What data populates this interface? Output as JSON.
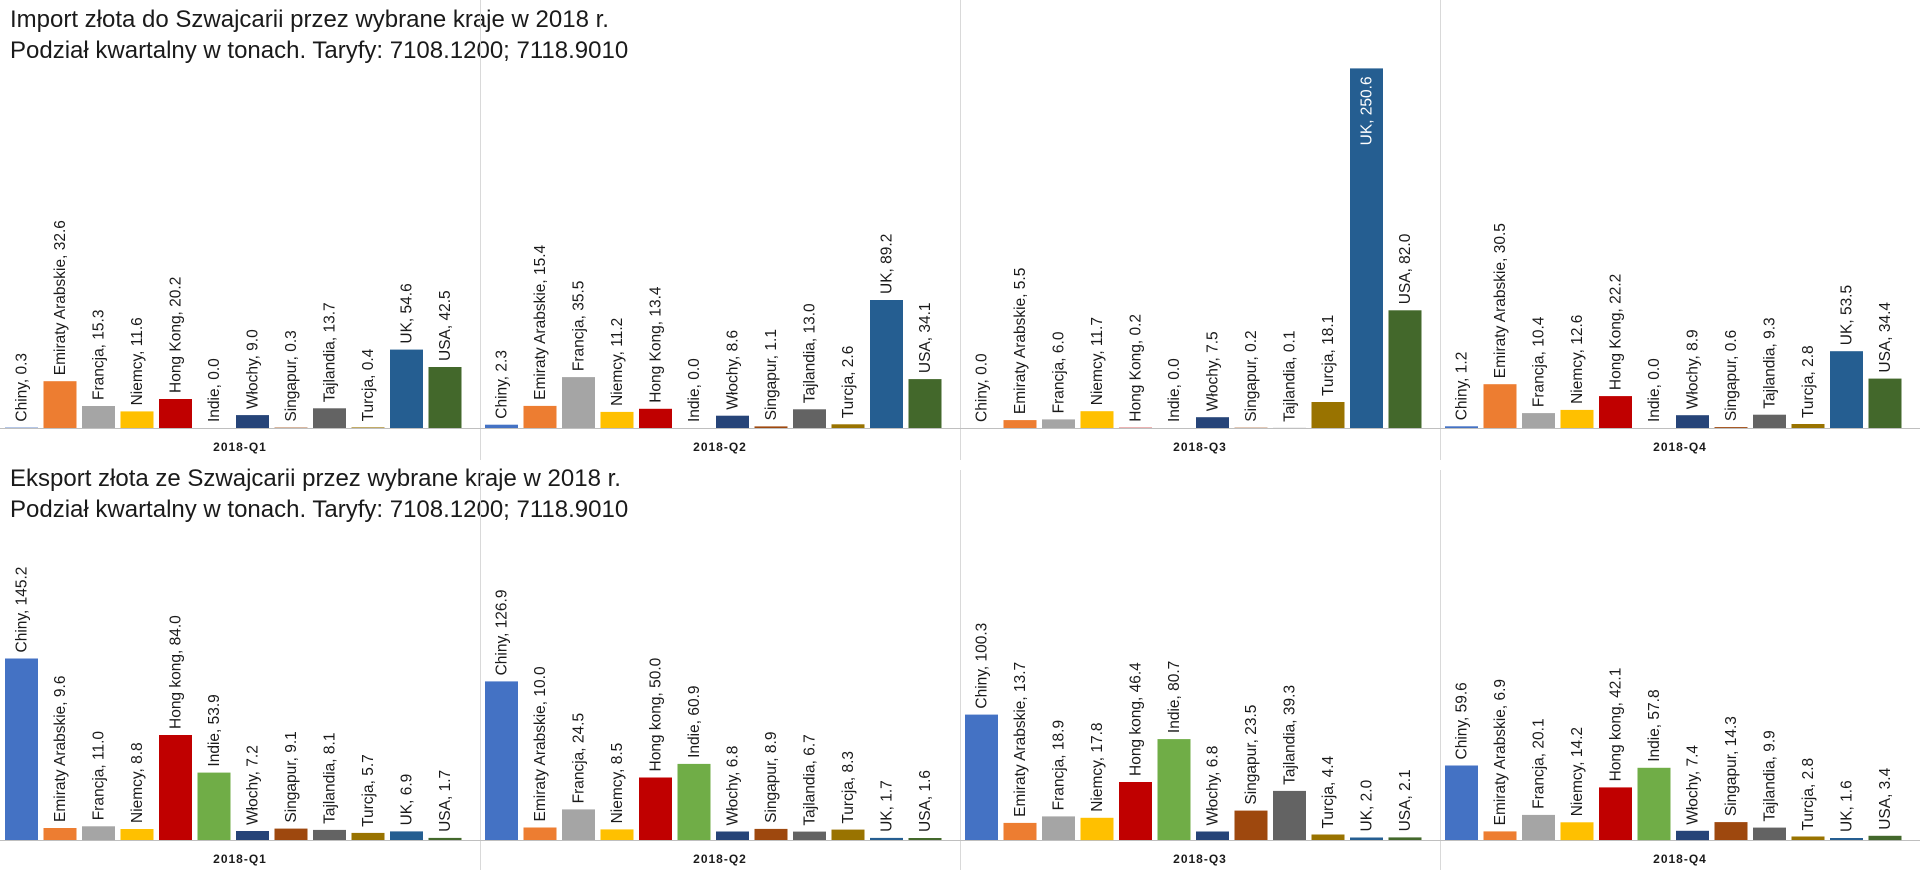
{
  "import_title": {
    "line1": "Import złota do Szwajcarii przez wybrane kraje w 2018 r.",
    "line2": "Podział kwartalny w tonach. Taryfy: 7108.1200; 7118.9010"
  },
  "export_title": {
    "line1": "Eksport złota ze Szwajcarii przez wybrane kraje w 2018 r.",
    "line2": "Podział kwartalny w tonach. Taryfy: 7108.1200; 7118.9010"
  },
  "country_colors": [
    "#4472C4",
    "#ED7D31",
    "#A5A5A5",
    "#FFC000",
    "#C00000",
    "#70AD47",
    "#264478",
    "#9E480E",
    "#636363",
    "#997300",
    "#255E91",
    "#43682B"
  ],
  "chart_data": [
    {
      "type": "bar",
      "title": "Import złota do Szwajcarii przez wybrane kraje w 2018 r.",
      "subtitle": "Podział kwartalny w tonach. Taryfy: 7108.1200; 7118.9010",
      "unit": "tony",
      "categories": [
        "2018-Q1",
        "2018-Q2",
        "2018-Q3",
        "2018-Q4"
      ],
      "groups": [
        {
          "category": "2018-Q1",
          "bars": [
            {
              "country": "Chiny",
              "value": 0.3,
              "label": "Chiny, 0.3",
              "color_index": 0
            },
            {
              "country": "Emiraty Arabskie",
              "value": 32.6,
              "label": "Emiraty Arabskie, 32.6",
              "color_index": 1
            },
            {
              "country": "Francja",
              "value": 15.3,
              "label": "Francja, 15.3",
              "color_index": 2
            },
            {
              "country": "Niemcy",
              "value": 11.6,
              "label": "Niemcy, 11.6",
              "color_index": 3
            },
            {
              "country": "Hong Kong",
              "value": 20.2,
              "label": "Hong Kong, 20.2",
              "color_index": 4
            },
            {
              "country": "Indie",
              "value": 0.0,
              "label": "Indie, 0.0",
              "color_index": 5
            },
            {
              "country": "Włochy",
              "value": 9.0,
              "label": "Włochy, 9.0",
              "color_index": 6
            },
            {
              "country": "Singapur",
              "value": 0.3,
              "label": "Singapur, 0.3",
              "color_index": 7
            },
            {
              "country": "Tajlandia",
              "value": 13.7,
              "label": "Tajlandia, 13.7",
              "color_index": 8
            },
            {
              "country": "Turcja",
              "value": 0.4,
              "label": "Turcja, 0.4",
              "color_index": 9
            },
            {
              "country": "UK",
              "value": 54.6,
              "label": "UK, 54.6",
              "color_index": 10
            },
            {
              "country": "USA",
              "value": 42.5,
              "label": "USA, 42.5",
              "color_index": 11
            }
          ]
        },
        {
          "category": "2018-Q2",
          "bars": [
            {
              "country": "Chiny",
              "value": 2.3,
              "label": "Chiny, 2.3",
              "color_index": 0
            },
            {
              "country": "Emiraty Arabskie",
              "value": 15.4,
              "label": "Emiraty Arabskie, 15.4",
              "color_index": 1
            },
            {
              "country": "Francja",
              "value": 35.5,
              "label": "Francja, 35.5",
              "color_index": 2
            },
            {
              "country": "Niemcy",
              "value": 11.2,
              "label": "Niemcy, 11.2",
              "color_index": 3
            },
            {
              "country": "Hong Kong",
              "value": 13.4,
              "label": "Hong Kong, 13.4",
              "color_index": 4
            },
            {
              "country": "Indie",
              "value": 0.0,
              "label": "Indie, 0.0",
              "color_index": 5
            },
            {
              "country": "Włochy",
              "value": 8.6,
              "label": "Włochy, 8.6",
              "color_index": 6
            },
            {
              "country": "Singapur",
              "value": 1.1,
              "label": "Singapur, 1.1",
              "color_index": 7
            },
            {
              "country": "Tajlandia",
              "value": 13.0,
              "label": "Tajlandia, 13.0",
              "color_index": 8
            },
            {
              "country": "Turcja",
              "value": 2.6,
              "label": "Turcja, 2.6",
              "color_index": 9
            },
            {
              "country": "UK",
              "value": 89.2,
              "label": "UK, 89.2",
              "color_index": 10
            },
            {
              "country": "USA",
              "value": 34.1,
              "label": "USA, 34.1",
              "color_index": 11
            }
          ]
        },
        {
          "category": "2018-Q3",
          "bars": [
            {
              "country": "Chiny",
              "value": 0.0,
              "label": "Chiny, 0.0",
              "color_index": 0
            },
            {
              "country": "Emiraty Arabskie",
              "value": 5.5,
              "label": "Emiraty Arabskie, 5.5",
              "color_index": 1
            },
            {
              "country": "Francja",
              "value": 6.0,
              "label": "Francja, 6.0",
              "color_index": 2
            },
            {
              "country": "Niemcy",
              "value": 11.7,
              "label": "Niemcy, 11.7",
              "color_index": 3
            },
            {
              "country": "Hong Kong",
              "value": 0.2,
              "label": "Hong Kong, 0.2",
              "color_index": 4
            },
            {
              "country": "Indie",
              "value": 0.0,
              "label": "Indie, 0.0",
              "color_index": 5
            },
            {
              "country": "Włochy",
              "value": 7.5,
              "label": "Włochy, 7.5",
              "color_index": 6
            },
            {
              "country": "Singapur",
              "value": 0.2,
              "label": "Singapur, 0.2",
              "color_index": 7
            },
            {
              "country": "Tajlandia",
              "value": 0.1,
              "label": "Tajlandia, 0.1",
              "color_index": 8
            },
            {
              "country": "Turcja",
              "value": 18.1,
              "label": "Turcja, 18.1",
              "color_index": 9
            },
            {
              "country": "UK",
              "value": 250.6,
              "label": "UK, 250.6",
              "color_index": 10,
              "label_inside": true
            },
            {
              "country": "USA",
              "value": 82.0,
              "label": "USA, 82.0",
              "color_index": 11
            }
          ]
        },
        {
          "category": "2018-Q4",
          "bars": [
            {
              "country": "Chiny",
              "value": 1.2,
              "label": "Chiny, 1.2",
              "color_index": 0
            },
            {
              "country": "Emiraty Arabskie",
              "value": 30.5,
              "label": "Emiraty Arabskie, 30.5",
              "color_index": 1
            },
            {
              "country": "Francja",
              "value": 10.4,
              "label": "Francja, 10.4",
              "color_index": 2
            },
            {
              "country": "Niemcy",
              "value": 12.6,
              "label": "Niemcy, 12.6",
              "color_index": 3
            },
            {
              "country": "Hong Kong",
              "value": 22.2,
              "label": "Hong Kong, 22.2",
              "color_index": 4
            },
            {
              "country": "Indie",
              "value": 0.0,
              "label": "Indie, 0.0",
              "color_index": 5
            },
            {
              "country": "Włochy",
              "value": 8.9,
              "label": "Włochy, 8.9",
              "color_index": 6
            },
            {
              "country": "Singapur",
              "value": 0.6,
              "label": "Singapur, 0.6",
              "color_index": 7
            },
            {
              "country": "Tajlandia",
              "value": 9.3,
              "label": "Tajlandia, 9.3",
              "color_index": 8
            },
            {
              "country": "Turcja",
              "value": 2.8,
              "label": "Turcja, 2.8",
              "color_index": 9
            },
            {
              "country": "UK",
              "value": 53.5,
              "label": "UK, 53.5",
              "color_index": 10
            },
            {
              "country": "USA",
              "value": 34.4,
              "label": "USA, 34.4",
              "color_index": 11
            }
          ]
        }
      ]
    },
    {
      "type": "bar",
      "title": "Eksport złota ze Szwajcarii przez wybrane kraje w 2018 r.",
      "subtitle": "Podział kwartalny w tonach. Taryfy: 7108.1200; 7118.9010",
      "unit": "tony",
      "categories": [
        "2018-Q1",
        "2018-Q2",
        "2018-Q3",
        "2018-Q4"
      ],
      "groups": [
        {
          "category": "2018-Q1",
          "bars": [
            {
              "country": "Chiny",
              "value": 145.2,
              "label": "Chiny, 145.2",
              "color_index": 0
            },
            {
              "country": "Emiraty Arabskie",
              "value": 9.6,
              "label": "Emiraty Arabskie, 9.6",
              "color_index": 1
            },
            {
              "country": "Francja",
              "value": 11.0,
              "label": "Francja, 11.0",
              "color_index": 2
            },
            {
              "country": "Niemcy",
              "value": 8.8,
              "label": "Niemcy, 8.8",
              "color_index": 3
            },
            {
              "country": "Hong kong",
              "value": 84.0,
              "label": "Hong kong, 84.0",
              "color_index": 4
            },
            {
              "country": "Indie",
              "value": 53.9,
              "label": "Indie, 53.9",
              "color_index": 5
            },
            {
              "country": "Włochy",
              "value": 7.2,
              "label": "Włochy, 7.2",
              "color_index": 6
            },
            {
              "country": "Singapur",
              "value": 9.1,
              "label": "Singapur, 9.1",
              "color_index": 7
            },
            {
              "country": "Tajlandia",
              "value": 8.1,
              "label": "Tajlandia, 8.1",
              "color_index": 8
            },
            {
              "country": "Turcja",
              "value": 5.7,
              "label": "Turcja, 5.7",
              "color_index": 9
            },
            {
              "country": "UK",
              "value": 6.9,
              "label": "UK, 6.9",
              "color_index": 10
            },
            {
              "country": "USA",
              "value": 1.7,
              "label": "USA, 1.7",
              "color_index": 11
            }
          ]
        },
        {
          "category": "2018-Q2",
          "bars": [
            {
              "country": "Chiny",
              "value": 126.9,
              "label": "Chiny, 126.9",
              "color_index": 0
            },
            {
              "country": "Emiraty Arabskie",
              "value": 10.0,
              "label": "Emiraty Arabskie, 10.0",
              "color_index": 1
            },
            {
              "country": "Francja",
              "value": 24.5,
              "label": "Francja, 24.5",
              "color_index": 2
            },
            {
              "country": "Niemcy",
              "value": 8.5,
              "label": "Niemcy, 8.5",
              "color_index": 3
            },
            {
              "country": "Hong kong",
              "value": 50.0,
              "label": "Hong kong, 50.0",
              "color_index": 4
            },
            {
              "country": "Indie",
              "value": 60.9,
              "label": "Indie, 60.9",
              "color_index": 5
            },
            {
              "country": "Włochy",
              "value": 6.8,
              "label": "Włochy, 6.8",
              "color_index": 6
            },
            {
              "country": "Singapur",
              "value": 8.9,
              "label": "Singapur, 8.9",
              "color_index": 7
            },
            {
              "country": "Tajlandia",
              "value": 6.7,
              "label": "Tajlandia, 6.7",
              "color_index": 8
            },
            {
              "country": "Turcja",
              "value": 8.3,
              "label": "Turcja, 8.3",
              "color_index": 9
            },
            {
              "country": "UK",
              "value": 1.7,
              "label": "UK, 1.7",
              "color_index": 10
            },
            {
              "country": "USA",
              "value": 1.6,
              "label": "USA, 1.6",
              "color_index": 11
            }
          ]
        },
        {
          "category": "2018-Q3",
          "bars": [
            {
              "country": "Chiny",
              "value": 100.3,
              "label": "Chiny, 100.3",
              "color_index": 0
            },
            {
              "country": "Emiraty Arabskie",
              "value": 13.7,
              "label": "Emiraty Arabskie, 13.7",
              "color_index": 1
            },
            {
              "country": "Francja",
              "value": 18.9,
              "label": "Francja, 18.9",
              "color_index": 2
            },
            {
              "country": "Niemcy",
              "value": 17.8,
              "label": "Niemcy, 17.8",
              "color_index": 3
            },
            {
              "country": "Hong kong",
              "value": 46.4,
              "label": "Hong kong, 46.4",
              "color_index": 4
            },
            {
              "country": "Indie",
              "value": 80.7,
              "label": "Indie, 80.7",
              "color_index": 5
            },
            {
              "country": "Włochy",
              "value": 6.8,
              "label": "Włochy, 6.8",
              "color_index": 6
            },
            {
              "country": "Singapur",
              "value": 23.5,
              "label": "Singapur, 23.5",
              "color_index": 7
            },
            {
              "country": "Tajlandia",
              "value": 39.3,
              "label": "Tajlandia, 39.3",
              "color_index": 8
            },
            {
              "country": "Turcja",
              "value": 4.4,
              "label": "Turcja, 4.4",
              "color_index": 9
            },
            {
              "country": "UK",
              "value": 2.0,
              "label": "UK, 2.0",
              "color_index": 10
            },
            {
              "country": "USA",
              "value": 2.1,
              "label": "USA, 2.1",
              "color_index": 11
            }
          ]
        },
        {
          "category": "2018-Q4",
          "bars": [
            {
              "country": "Chiny",
              "value": 59.6,
              "label": "Chiny, 59.6",
              "color_index": 0
            },
            {
              "country": "Emiraty Arabskie",
              "value": 6.9,
              "label": "Emiraty Arabskie, 6.9",
              "color_index": 1
            },
            {
              "country": "Francja",
              "value": 20.1,
              "label": "Francja, 20.1",
              "color_index": 2
            },
            {
              "country": "Niemcy",
              "value": 14.2,
              "label": "Niemcy, 14.2",
              "color_index": 3
            },
            {
              "country": "Hong kong",
              "value": 42.1,
              "label": "Hong kong, 42.1",
              "color_index": 4
            },
            {
              "country": "Indie",
              "value": 57.8,
              "label": "Indie, 57.8",
              "color_index": 5
            },
            {
              "country": "Włochy",
              "value": 7.4,
              "label": "Włochy, 7.4",
              "color_index": 6
            },
            {
              "country": "Singapur",
              "value": 14.3,
              "label": "Singapur, 14.3",
              "color_index": 7
            },
            {
              "country": "Tajlandia",
              "value": 9.9,
              "label": "Tajlandia, 9.9",
              "color_index": 8
            },
            {
              "country": "Turcja",
              "value": 2.8,
              "label": "Turcja, 2.8",
              "color_index": 9
            },
            {
              "country": "UK",
              "value": 1.6,
              "label": "UK, 1.6",
              "color_index": 10
            },
            {
              "country": "USA",
              "value": 3.4,
              "label": "USA, 3.4",
              "color_index": 11
            }
          ]
        }
      ]
    }
  ]
}
